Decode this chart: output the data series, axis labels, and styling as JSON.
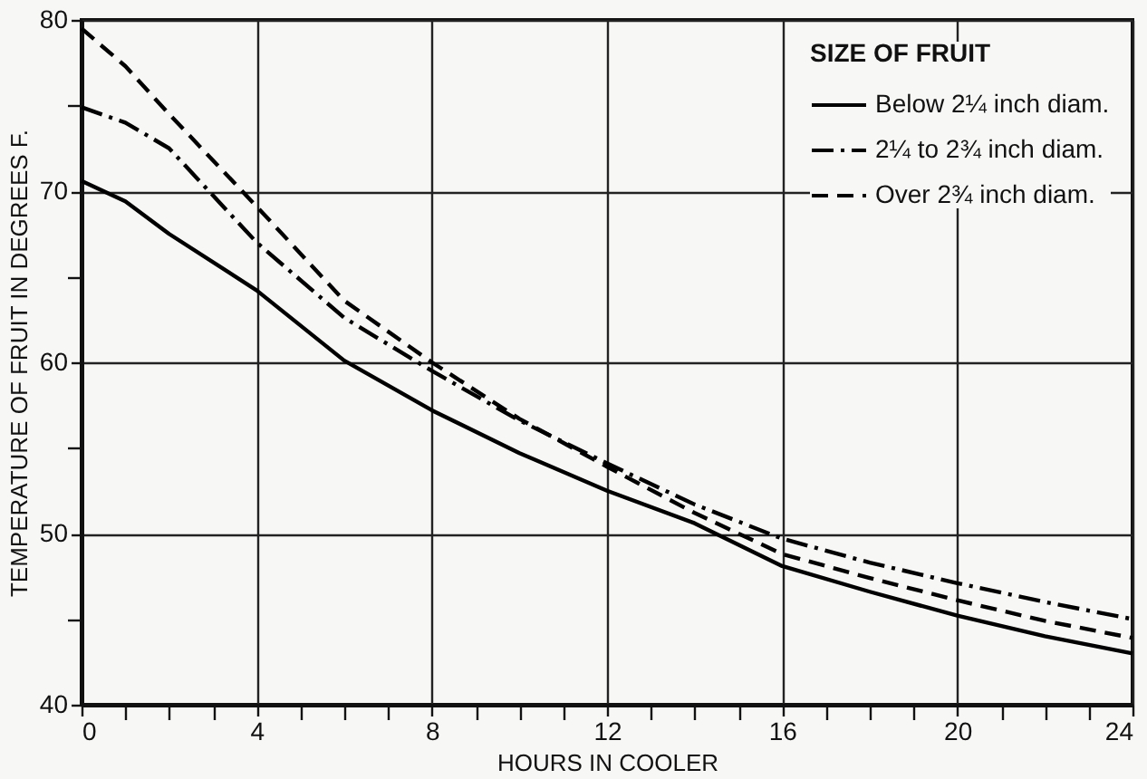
{
  "chart_data": {
    "type": "line",
    "xlabel": "HOURS IN COOLER",
    "ylabel": "TEMPERATURE OF FRUIT IN DEGREES F.",
    "legend_title": "SIZE OF FRUIT",
    "legend": "top right",
    "grid": true,
    "x": [
      0,
      1,
      2,
      4,
      6,
      8,
      10,
      12,
      14,
      16,
      18,
      20,
      22,
      24
    ],
    "xlim": [
      0,
      24
    ],
    "ylim": [
      40,
      80
    ],
    "xticks": [
      0,
      {
        "value": 1,
        "label": null
      },
      {
        "value": 2,
        "label": null
      },
      {
        "value": 3,
        "label": null
      },
      4,
      {
        "value": 5,
        "label": null
      },
      {
        "value": 6,
        "label": null
      },
      {
        "value": 7,
        "label": null
      },
      8,
      {
        "value": 9,
        "label": null
      },
      {
        "value": 10,
        "label": null
      },
      {
        "value": 11,
        "label": null
      },
      12,
      {
        "value": 13,
        "label": null
      },
      {
        "value": 14,
        "label": null
      },
      {
        "value": 15,
        "label": null
      },
      16,
      {
        "value": 17,
        "label": null
      },
      {
        "value": 18,
        "label": null
      },
      {
        "value": 19,
        "label": null
      },
      20,
      {
        "value": 21,
        "label": null
      },
      {
        "value": 22,
        "label": null
      },
      {
        "value": 23,
        "label": null
      },
      24
    ],
    "yticks": [
      40,
      {
        "value": 45,
        "label": null
      },
      50,
      {
        "value": 55,
        "label": null
      },
      60,
      {
        "value": 65,
        "label": null
      },
      70,
      {
        "value": 75,
        "label": null
      },
      80
    ],
    "series": [
      {
        "name": "Below 2¼ inch diam.",
        "color": "#000000",
        "line_style": "solid",
        "values": [
          70.6,
          69.4,
          67.5,
          64.2,
          60.1,
          57.2,
          54.7,
          52.5,
          50.6,
          48.1,
          46.6,
          45.2,
          44.0,
          43.0
        ]
      },
      {
        "name": "2¼ to 2¾ inch diam.",
        "color": "#000000",
        "line_style": "dashdot",
        "values": [
          74.9,
          74.0,
          72.5,
          67.0,
          62.6,
          59.5,
          56.6,
          54.1,
          51.7,
          49.7,
          48.3,
          47.1,
          46.0,
          45.0
        ]
      },
      {
        "name": "Over 2¾ inch diam.",
        "color": "#000000",
        "line_style": "dashed",
        "values": [
          79.5,
          77.3,
          74.5,
          69.1,
          63.6,
          60.0,
          56.7,
          53.9,
          51.2,
          48.8,
          47.4,
          46.1,
          44.9,
          43.9
        ]
      }
    ]
  }
}
